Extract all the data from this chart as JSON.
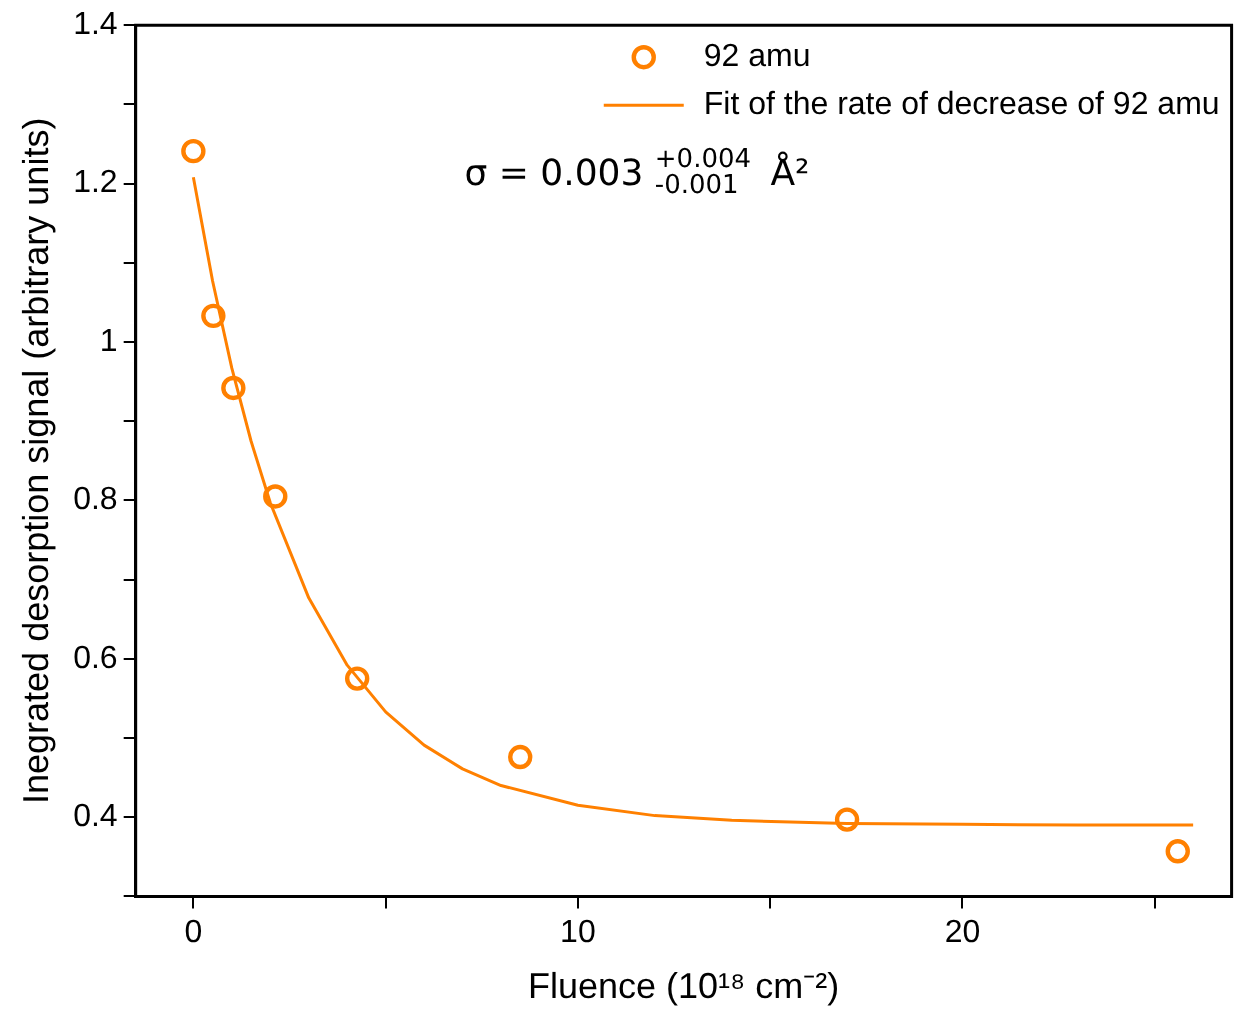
{
  "chart_data": {
    "type": "scatter",
    "xlabel": "Fluence (10¹⁸ cm⁻²)",
    "ylabel": "Inegrated desorption signal (arbitrary units)",
    "series": [
      {
        "name": "92 amu",
        "color": "#ff8000",
        "marker": "circle",
        "x": [
          0,
          0.52,
          1.04,
          2.13,
          4.26,
          8.5,
          17.0,
          25.6
        ],
        "values": [
          1.241,
          1.033,
          0.942,
          0.805,
          0.575,
          0.476,
          0.397,
          0.357
        ]
      },
      {
        "name": "Fit of the rate of decrease of 92 amu",
        "type": "line",
        "color": "#ff8000",
        "marker": "none",
        "line_style": "solid",
        "x": [
          0,
          0.5,
          1,
          1.5,
          2,
          3,
          4,
          5,
          6,
          7,
          8,
          10,
          12,
          14,
          17,
          20,
          23,
          26
        ],
        "values": [
          1.208,
          1.077,
          0.967,
          0.875,
          0.797,
          0.677,
          0.592,
          0.533,
          0.491,
          0.461,
          0.44,
          0.415,
          0.402,
          0.396,
          0.392,
          0.391,
          0.39,
          0.39
        ]
      }
    ],
    "annotations": [
      "σ = 0.003 $^{+0.004}$$_{-0.001}$ Å²"
    ],
    "xlim": [
      -1.5,
      27
    ],
    "xticks": [
      0,
      {
        "value": 5,
        "label": null
      },
      10,
      {
        "value": 15,
        "label": null
      },
      20,
      {
        "value": 25,
        "label": null
      }
    ],
    "ylim": [
      0.3,
      1.4
    ],
    "yticks": [
      {
        "value": 0.3,
        "label": null
      },
      0.4,
      {
        "value": 0.5,
        "label": null
      },
      0.6,
      {
        "value": 0.7,
        "label": null
      },
      0.8,
      {
        "value": 0.9,
        "label": null
      },
      1.0,
      {
        "value": 1.1,
        "label": null
      },
      1.2,
      {
        "value": 1.3,
        "label": null
      },
      1.4
    ],
    "grid": false,
    "legend": "top right"
  }
}
